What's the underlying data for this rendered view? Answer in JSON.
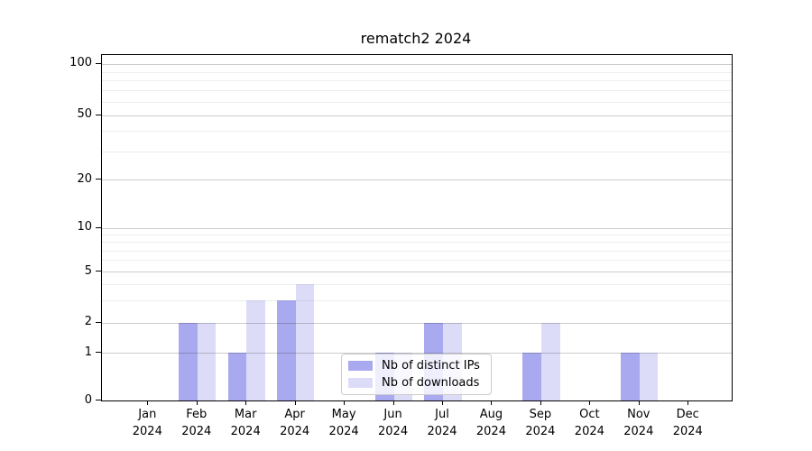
{
  "chart_data": {
    "type": "bar",
    "title": "rematch2 2024",
    "categories": [
      "Jan",
      "Feb",
      "Mar",
      "Apr",
      "May",
      "Jun",
      "Jul",
      "Aug",
      "Sep",
      "Oct",
      "Nov",
      "Dec"
    ],
    "category_year": "2024",
    "series": [
      {
        "name": "Nb of distinct IPs",
        "color": "#a9a9ef",
        "values": [
          0,
          2,
          1,
          3,
          0,
          1,
          2,
          0,
          1,
          0,
          1,
          0
        ]
      },
      {
        "name": "Nb of downloads",
        "color": "#dcdcf8",
        "values": [
          0,
          2,
          3,
          4,
          0,
          1,
          2,
          0,
          2,
          0,
          1,
          0
        ]
      }
    ],
    "yticks": [
      0,
      1,
      2,
      5,
      10,
      20,
      50,
      100
    ],
    "yscale": "symlog-like",
    "xlabel": "",
    "ylabel": "",
    "grid": true,
    "legend_position": "lower center",
    "colors": {
      "grid_major": "rgba(0,0,0,0.20)",
      "grid_minor": "rgba(0,0,0,0.07)",
      "spine": "#000000",
      "text": "#000000",
      "background": "#ffffff"
    }
  }
}
